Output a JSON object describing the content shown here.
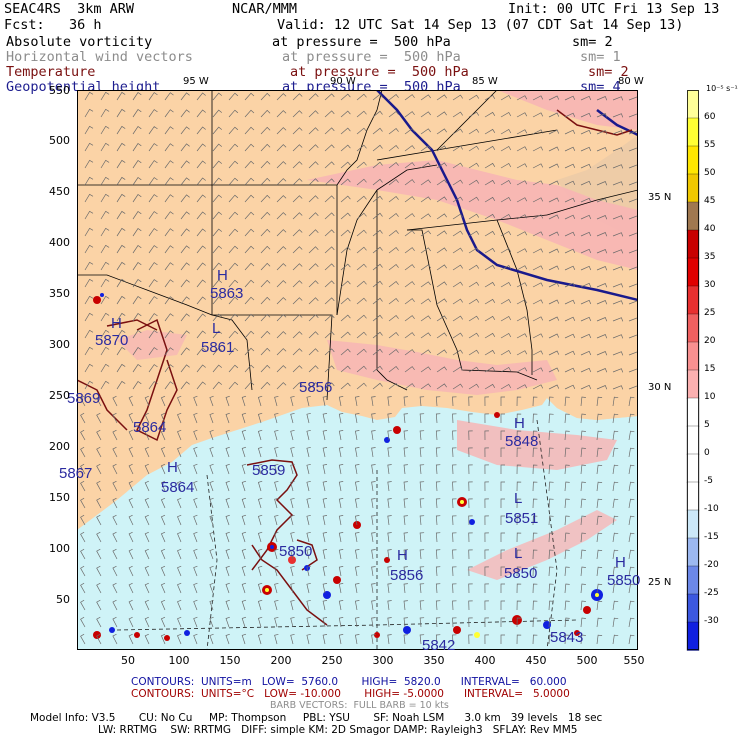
{
  "header": {
    "model": "SEAC4RS  3km ARW",
    "org": "NCAR/MMM",
    "init": "Init: 00 UTC Fri 13 Sep 13",
    "fcst": "Fcst:   36 h",
    "valid": "Valid: 12 UTC Sat 14 Sep 13 (07 CDT Sat 14 Sep 13)",
    "fields": [
      {
        "name": "Absolute vorticity",
        "level": "at pressure =  500 hPa",
        "sm": "sm= 2"
      },
      {
        "name": "Horizontal wind vectors",
        "level": "at pressure =  500 hPa",
        "sm": "sm= 1"
      },
      {
        "name": "Temperature",
        "level": "at pressure =  500 hPa",
        "sm": "sm= 2"
      },
      {
        "name": "Geopotential height",
        "level": "at pressure =  500 hPa",
        "sm": "sm= 4"
      }
    ]
  },
  "map": {
    "lon_labels": [
      "95 W",
      "90 W",
      "85 W",
      "80 W"
    ],
    "lat_labels": [
      "35 N",
      "30 N",
      "25 N"
    ],
    "x_ticks": [
      "50",
      "100",
      "150",
      "200",
      "250",
      "300",
      "350",
      "400",
      "450",
      "500",
      "550"
    ],
    "y_ticks": [
      "500",
      "450",
      "400",
      "350",
      "300",
      "250",
      "200",
      "150",
      "100",
      "50"
    ],
    "height_labels": [
      {
        "hl": "H",
        "val": "5863"
      },
      {
        "hl": "H",
        "val": "5870"
      },
      {
        "hl": "L",
        "val": "5861"
      },
      {
        "hl": "",
        "val": "5856"
      },
      {
        "hl": "",
        "val": "5869"
      },
      {
        "hl": "",
        "val": "5864"
      },
      {
        "hl": "H",
        "val": "5864"
      },
      {
        "hl": "",
        "val": "5867"
      },
      {
        "hl": "",
        "val": "5859"
      },
      {
        "hl": "H",
        "val": "5848"
      },
      {
        "hl": "L",
        "val": "5851"
      },
      {
        "hl": "L",
        "val": "5850"
      },
      {
        "hl": "H",
        "val": "5856"
      },
      {
        "hl": "",
        "val": "5850"
      },
      {
        "hl": "H",
        "val": "5850"
      },
      {
        "hl": "",
        "val": "5843"
      },
      {
        "hl": "",
        "val": "5842"
      }
    ]
  },
  "colorbar": {
    "unit": "10⁻⁵ s⁻¹",
    "labels": [
      "60",
      "55",
      "50",
      "45",
      "40",
      "35",
      "30",
      "25",
      "20",
      "15",
      "10",
      "5",
      "0",
      "-5",
      "-10",
      "-15",
      "-20",
      "-25",
      "-30"
    ],
    "colors": [
      "#ffff33",
      "#ffe600",
      "#f0c800",
      "#a07850",
      "#c80000",
      "#e00000",
      "#e83030",
      "#f06060",
      "#f89090",
      "#fbb0b0",
      "#ffffff",
      "#ffffff",
      "#ffffff",
      "#ffffff",
      "#cce8f8",
      "#9cb8f0",
      "#6c88e8",
      "#3c58e0",
      "#1020e0"
    ]
  },
  "footer": {
    "contours1": "CONTOURS:  UNITS=m   LOW=  5760.0       HIGH=  5820.0      INTERVAL=   60.000",
    "contours2": "CONTOURS:  UNITS=°C   LOW= -10.000       HIGH= -5.0000      INTERVAL=   5.0000",
    "barb": "BARB VECTORS:  FULL BARB = 10 kts",
    "info1": "Model Info: V3.5       CU: No Cu     MP: Thompson     PBL: YSU       SF: Noah LSM      3.0 km   39 levels   18 sec",
    "info2": "LW: RRTMG    SW: RRTMG   DIFF: simple KM: 2D Smagor DAMP: Rayleigh3   SFLAY: Rev MM5"
  }
}
